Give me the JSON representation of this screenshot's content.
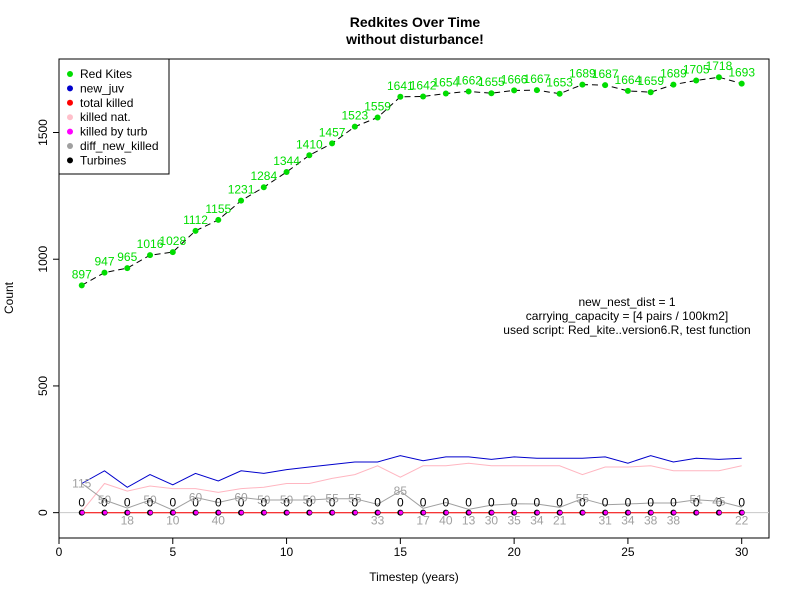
{
  "chart_data": {
    "type": "line",
    "title": "Redkites Over Time",
    "subtitle": "without disturbance!",
    "xlabel": "Timestep (years)",
    "ylabel": "Count",
    "xlim": [
      0,
      31.2
    ],
    "ylim": [
      -100,
      1790
    ],
    "x_ticks": [
      0,
      5,
      10,
      15,
      20,
      25,
      30
    ],
    "y_ticks": [
      0,
      500,
      1000,
      1500
    ],
    "legend_position": "top-left",
    "legend": [
      {
        "label": "Red Kites",
        "color": "#00dd00"
      },
      {
        "label": "new_juv",
        "color": "#0000cc"
      },
      {
        "label": "total killed",
        "color": "#ff0000"
      },
      {
        "label": "killed nat.",
        "color": "#ffc0cb"
      },
      {
        "label": "killed by turb",
        "color": "#ff00ff"
      },
      {
        "label": "diff_new_killed",
        "color": "#a0a0a0"
      },
      {
        "label": "Turbines",
        "color": "#000000"
      }
    ],
    "annotations": [
      "new_nest_dist = 1",
      "carrying_capacity = [4 pairs / 100km2]",
      "used script: Red_kite..version6.R, test function"
    ],
    "x": [
      1,
      2,
      3,
      4,
      5,
      6,
      7,
      8,
      9,
      10,
      11,
      12,
      13,
      14,
      15,
      16,
      17,
      18,
      19,
      20,
      21,
      22,
      23,
      24,
      25,
      26,
      27,
      28,
      29,
      30
    ],
    "series": [
      {
        "name": "Red Kites",
        "color": "#00dd00",
        "style": "dashed-points",
        "values": [
          897,
          947,
          965,
          1016,
          1028,
          1112,
          1155,
          1231,
          1284,
          1344,
          1410,
          1457,
          1523,
          1559,
          1641,
          1642,
          1654,
          1662,
          1655,
          1666,
          1667,
          1653,
          1689,
          1687,
          1664,
          1659,
          1689,
          1705,
          1718,
          1693
        ]
      },
      {
        "name": "new_juv",
        "color": "#0000cc",
        "style": "line",
        "values": [
          115,
          165,
          100,
          150,
          110,
          155,
          125,
          165,
          155,
          170,
          180,
          190,
          200,
          200,
          225,
          205,
          220,
          220,
          210,
          220,
          215,
          215,
          215,
          220,
          195,
          225,
          200,
          215,
          210,
          215
        ]
      },
      {
        "name": "killed nat.",
        "color": "#ffb6c1",
        "style": "line",
        "values": [
          5,
          115,
          85,
          105,
          95,
          95,
          80,
          95,
          100,
          115,
          115,
          135,
          150,
          185,
          140,
          185,
          185,
          195,
          185,
          185,
          185,
          185,
          150,
          180,
          180,
          185,
          165,
          165,
          165,
          185
        ]
      },
      {
        "name": "diff_new_killed",
        "color": "#a0a0a0",
        "style": "line",
        "values": [
          115,
          50,
          18,
          50,
          10,
          60,
          40,
          60,
          50,
          50,
          50,
          55,
          55,
          33,
          85,
          17,
          40,
          13,
          30,
          35,
          34,
          21,
          55,
          31,
          34,
          38,
          38,
          51,
          45,
          22
        ]
      },
      {
        "name": "Turbines",
        "color": "#000000",
        "style": "points",
        "values": [
          0,
          0,
          0,
          0,
          0,
          0,
          0,
          0,
          0,
          0,
          0,
          0,
          0,
          0,
          0,
          0,
          0,
          0,
          0,
          0,
          0,
          0,
          0,
          0,
          0,
          0,
          0,
          0,
          0,
          0
        ]
      },
      {
        "name": "killed by turb",
        "color": "#ff00ff",
        "style": "points",
        "values": [
          0,
          0,
          0,
          0,
          0,
          0,
          0,
          0,
          0,
          0,
          0,
          0,
          0,
          0,
          0,
          0,
          0,
          0,
          0,
          0,
          0,
          0,
          0,
          0,
          0,
          0,
          0,
          0,
          0,
          0
        ]
      },
      {
        "name": "total killed",
        "color": "#ff0000",
        "style": "line",
        "values": [
          0,
          0,
          0,
          0,
          0,
          0,
          0,
          0,
          0,
          0,
          0,
          0,
          0,
          0,
          0,
          0,
          0,
          0,
          0,
          0,
          0,
          0,
          0,
          0,
          0,
          0,
          0,
          0,
          0,
          0
        ]
      }
    ],
    "point_labels": {
      "green": [
        "897",
        "947",
        "965",
        "1016",
        "1028",
        "1112",
        "1155",
        "1231",
        "1284",
        "1344",
        "1410",
        "1457",
        "1523",
        "1559",
        "1641",
        "1642",
        "1654",
        "1662",
        "1655",
        "1666",
        "1667",
        "1653",
        "1689",
        "1687",
        "1664",
        "1659",
        "1689",
        "1705",
        "1718",
        "1693"
      ],
      "black": [
        "0",
        "0",
        "0",
        "0",
        "0",
        "0",
        "0",
        "0",
        "0",
        "0",
        "0",
        "0",
        "0",
        "0",
        "0",
        "0",
        "0",
        "0",
        "0",
        "0",
        "0",
        "0",
        "0",
        "0",
        "0",
        "0",
        "0",
        "0",
        "0",
        "0"
      ],
      "grey": [
        "115",
        "50",
        "18",
        "50",
        "10",
        "60",
        "40",
        "60",
        "50",
        "50",
        "50",
        "55",
        "55",
        "33",
        "85",
        "17",
        "40",
        "13",
        "30",
        "35",
        "34",
        "21",
        "55",
        "31",
        "34",
        "38",
        "38",
        "51",
        "45",
        "22"
      ]
    }
  }
}
